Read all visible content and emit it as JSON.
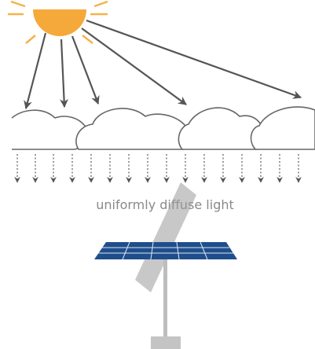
{
  "caption": "uniformly diffuse light"
}
